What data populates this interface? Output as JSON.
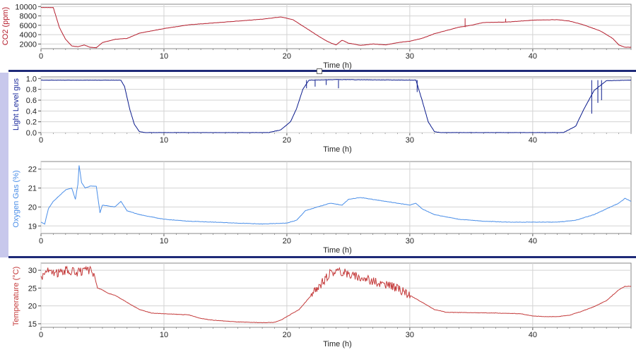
{
  "colors": {
    "co2": "#b51f2e",
    "light": "#0a1a8c",
    "oxygen": "#4a8ee8",
    "temperature": "#c43a3a",
    "grid": "#d3d3d3",
    "axis_label_co2": "#b51f2e",
    "axis_label_light": "#1a2a9c",
    "axis_label_oxygen": "#4a8ee8",
    "axis_label_temperature": "#c43a3a"
  },
  "chart_data": [
    {
      "type": "line",
      "xlabel": "Time (h)",
      "ylabel": "CO2 (ppm)",
      "xlim": [
        0,
        48
      ],
      "ylim": [
        1000,
        10500
      ],
      "x_ticks": [
        0,
        10,
        20,
        30,
        40
      ],
      "y_ticks": [
        2000,
        4000,
        6000,
        8000,
        10000
      ],
      "grid": true,
      "series": [
        {
          "points": [
            [
              0,
              9800
            ],
            [
              1,
              9800
            ],
            [
              1.5,
              5500
            ],
            [
              2,
              3000
            ],
            [
              2.5,
              1600
            ],
            [
              3,
              1400
            ],
            [
              3.5,
              1800
            ],
            [
              4,
              1300
            ],
            [
              4.5,
              1200
            ],
            [
              5,
              2300
            ],
            [
              6,
              3000
            ],
            [
              7,
              3200
            ],
            [
              8,
              4300
            ],
            [
              10,
              5300
            ],
            [
              12,
              6100
            ],
            [
              14,
              6500
            ],
            [
              16,
              6900
            ],
            [
              18,
              7300
            ],
            [
              19.5,
              7800
            ],
            [
              20.5,
              7200
            ],
            [
              21.5,
              5500
            ],
            [
              22.5,
              3800
            ],
            [
              23,
              3000
            ],
            [
              23.5,
              2300
            ],
            [
              24,
              1800
            ],
            [
              24.5,
              2800
            ],
            [
              25,
              2200
            ],
            [
              26,
              1700
            ],
            [
              27,
              2000
            ],
            [
              28,
              1800
            ],
            [
              29,
              2300
            ],
            [
              30,
              2600
            ],
            [
              31,
              3200
            ],
            [
              32,
              4200
            ],
            [
              34,
              5600
            ],
            [
              35,
              6000
            ],
            [
              36,
              6600
            ],
            [
              38,
              6700
            ],
            [
              40,
              7100
            ],
            [
              42,
              7200
            ],
            [
              43,
              6900
            ],
            [
              44,
              6200
            ],
            [
              45.5,
              4800
            ],
            [
              46.5,
              3200
            ],
            [
              47,
              1800
            ],
            [
              47.5,
              1300
            ],
            [
              48,
              1300
            ]
          ],
          "spikes": [
            [
              34.5,
              7500
            ],
            [
              37.8,
              7400
            ]
          ]
        }
      ]
    },
    {
      "type": "line",
      "xlabel": "Time (h)",
      "ylabel": "Light Level gus",
      "xlim": [
        0,
        48
      ],
      "ylim": [
        0,
        1.03
      ],
      "x_ticks": [
        0,
        10,
        20,
        30,
        40
      ],
      "y_ticks": [
        0.0,
        0.2,
        0.4,
        0.6,
        0.8,
        1.0
      ],
      "y_tick_labels": [
        "0.0",
        "0.2",
        "0.4",
        "0.6",
        "0.8",
        "1.0"
      ],
      "grid": true,
      "series": [
        {
          "points": [
            [
              0,
              0.97
            ],
            [
              6.5,
              0.97
            ],
            [
              6.8,
              0.85
            ],
            [
              7.2,
              0.45
            ],
            [
              7.6,
              0.15
            ],
            [
              8,
              0.02
            ],
            [
              8.5,
              0.0
            ],
            [
              18.5,
              0.0
            ],
            [
              19.5,
              0.05
            ],
            [
              20.3,
              0.2
            ],
            [
              20.8,
              0.45
            ],
            [
              21.3,
              0.8
            ],
            [
              21.8,
              0.97
            ],
            [
              24,
              0.98
            ],
            [
              30.5,
              0.97
            ],
            [
              31,
              0.6
            ],
            [
              31.5,
              0.2
            ],
            [
              32,
              0.02
            ],
            [
              32.5,
              0.0
            ],
            [
              42.5,
              0.0
            ],
            [
              43.5,
              0.12
            ],
            [
              44.2,
              0.45
            ],
            [
              45,
              0.78
            ],
            [
              46,
              0.96
            ],
            [
              48,
              0.97
            ]
          ],
          "dips": [
            [
              21.6,
              0.82
            ],
            [
              22.3,
              0.85
            ],
            [
              23.2,
              0.88
            ],
            [
              24.2,
              0.82
            ],
            [
              30.6,
              0.75
            ],
            [
              44.8,
              0.35
            ],
            [
              45.3,
              0.55
            ],
            [
              45.6,
              0.6
            ]
          ]
        }
      ]
    },
    {
      "type": "line",
      "xlabel": "Time (h)",
      "ylabel": "Oxygen Gas (%)",
      "xlim": [
        0,
        48
      ],
      "ylim": [
        18.6,
        22.4
      ],
      "x_ticks": [
        0,
        10,
        20,
        30,
        40
      ],
      "y_ticks": [
        19,
        20,
        21,
        22
      ],
      "grid": true,
      "series": [
        {
          "points": [
            [
              0,
              19.2
            ],
            [
              0.3,
              19.1
            ],
            [
              0.6,
              19.9
            ],
            [
              1,
              20.3
            ],
            [
              1.5,
              20.6
            ],
            [
              2,
              20.9
            ],
            [
              2.5,
              21.0
            ],
            [
              2.8,
              20.4
            ],
            [
              3,
              21.2
            ],
            [
              3.1,
              22.2
            ],
            [
              3.3,
              21.3
            ],
            [
              3.6,
              21.0
            ],
            [
              4,
              21.1
            ],
            [
              4.5,
              21.1
            ],
            [
              4.8,
              19.7
            ],
            [
              5,
              20.1
            ],
            [
              6,
              20.0
            ],
            [
              6.5,
              20.3
            ],
            [
              7,
              19.8
            ],
            [
              8,
              19.6
            ],
            [
              10,
              19.35
            ],
            [
              12,
              19.25
            ],
            [
              14,
              19.2
            ],
            [
              16,
              19.15
            ],
            [
              18,
              19.1
            ],
            [
              20,
              19.15
            ],
            [
              20.8,
              19.3
            ],
            [
              21.5,
              19.8
            ],
            [
              22.5,
              20.0
            ],
            [
              23.5,
              20.2
            ],
            [
              24.5,
              20.1
            ],
            [
              25,
              20.4
            ],
            [
              26,
              20.5
            ],
            [
              27,
              20.4
            ],
            [
              28,
              20.3
            ],
            [
              29,
              20.2
            ],
            [
              30,
              20.1
            ],
            [
              30.5,
              20.2
            ],
            [
              31,
              19.9
            ],
            [
              32,
              19.6
            ],
            [
              34,
              19.35
            ],
            [
              36,
              19.25
            ],
            [
              38,
              19.2
            ],
            [
              40,
              19.2
            ],
            [
              42,
              19.2
            ],
            [
              43.5,
              19.3
            ],
            [
              45,
              19.6
            ],
            [
              46,
              19.9
            ],
            [
              47,
              20.2
            ],
            [
              47.5,
              20.45
            ],
            [
              48,
              20.3
            ]
          ]
        }
      ]
    },
    {
      "type": "line",
      "xlabel": "Time (h)",
      "ylabel": "Temperature (°C)",
      "xlim": [
        0,
        48
      ],
      "ylim": [
        14,
        32
      ],
      "x_ticks": [
        0,
        10,
        20,
        30,
        40
      ],
      "y_ticks": [
        15,
        20,
        25,
        30
      ],
      "grid": true,
      "series": [
        {
          "points": [
            [
              0,
              28
            ],
            [
              0.5,
              30
            ],
            [
              1,
              29
            ],
            [
              2,
              30
            ],
            [
              3,
              29.5
            ],
            [
              4,
              30
            ],
            [
              4.3,
              29
            ],
            [
              4.6,
              25
            ],
            [
              5,
              24.5
            ],
            [
              5.5,
              23.5
            ],
            [
              6,
              23
            ],
            [
              7,
              21
            ],
            [
              8,
              19
            ],
            [
              9,
              18
            ],
            [
              10,
              17.8
            ],
            [
              12,
              17.5
            ],
            [
              13,
              16.5
            ],
            [
              14,
              16
            ],
            [
              16,
              15.5
            ],
            [
              18,
              15.3
            ],
            [
              19,
              15.4
            ],
            [
              19.5,
              16
            ],
            [
              20.5,
              18
            ],
            [
              21,
              19
            ],
            [
              21.5,
              21
            ],
            [
              22,
              23
            ],
            [
              22.5,
              25
            ],
            [
              23,
              27
            ],
            [
              23.5,
              29
            ],
            [
              24,
              30
            ],
            [
              25,
              29
            ],
            [
              26,
              28
            ],
            [
              27,
              27
            ],
            [
              28,
              26
            ],
            [
              29,
              25
            ],
            [
              30,
              23
            ],
            [
              31,
              21
            ],
            [
              32,
              19
            ],
            [
              33,
              18.2
            ],
            [
              35,
              18.1
            ],
            [
              37,
              18.0
            ],
            [
              39,
              17.8
            ],
            [
              40,
              17.2
            ],
            [
              41,
              17.0
            ],
            [
              42,
              17.0
            ],
            [
              43,
              17.4
            ],
            [
              44,
              18.5
            ],
            [
              45,
              19.8
            ],
            [
              46,
              21.5
            ],
            [
              47,
              24.5
            ],
            [
              47.5,
              25.5
            ],
            [
              48,
              25.5
            ]
          ],
          "noise": 1.2,
          "noise_spans": [
            [
              0,
              4.4
            ],
            [
              22,
              30
            ]
          ]
        }
      ]
    }
  ]
}
